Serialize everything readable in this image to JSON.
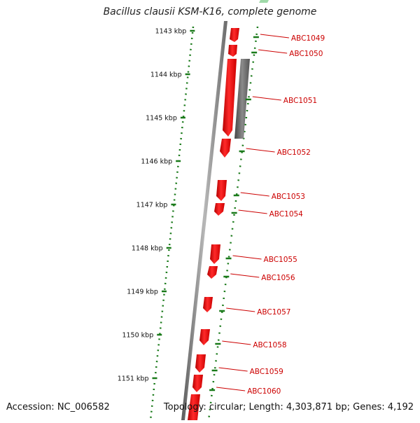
{
  "title": "Bacillus clausii KSM-K16, complete genome",
  "accession": "Accession: NC_006582",
  "summary": "Topology: circular; Length: 4,303,871 bp; Genes: 4,192",
  "colors": {
    "gene_forward": "#ff1a1a",
    "gene_other": "#666666",
    "tick_green": "#1a7a1a",
    "label_red": "#cc0000",
    "backbone": "#7a7a7a"
  },
  "scale_labels": [
    "1143 kbp",
    "1144 kbp",
    "1145 kbp",
    "1146 kbp",
    "1147 kbp",
    "1148 kbp",
    "1149 kbp",
    "1150 kbp",
    "1151 kbp"
  ],
  "genes": [
    {
      "label": "ABC1049"
    },
    {
      "label": "ABC1050"
    },
    {
      "label": "ABC1051"
    },
    {
      "label": "ABC1052"
    },
    {
      "label": "ABC1053"
    },
    {
      "label": "ABC1054"
    },
    {
      "label": "ABC1055"
    },
    {
      "label": "ABC1056"
    },
    {
      "label": "ABC1057"
    },
    {
      "label": "ABC1058"
    },
    {
      "label": "ABC1059"
    },
    {
      "label": "ABC1060"
    }
  ]
}
